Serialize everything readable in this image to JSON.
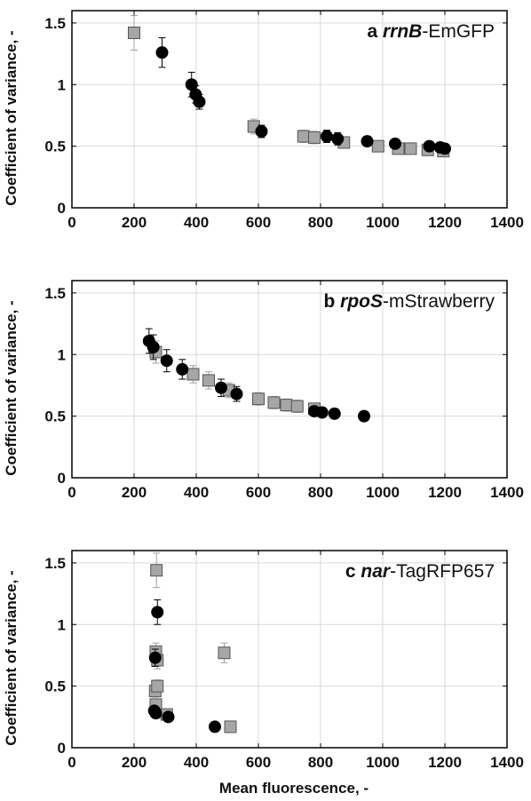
{
  "colors": {
    "black_series": "#000000",
    "gray_series": "#a6a6a6",
    "gray_edge": "#555555",
    "grid": "#d9d9d9",
    "errorbar_gray": "#a0a0a0"
  },
  "xlabel": "Mean fluorescence, -",
  "chart_data": [
    {
      "type": "scatter",
      "panel_letter": "a",
      "title_italic": "rrnB",
      "title_rest": "-EmGFP",
      "ylabel": "Coefficient of variance, -",
      "xlim": [
        0,
        1400
      ],
      "ylim": [
        0,
        1.6
      ],
      "xticks": [
        "0",
        "200",
        "400",
        "600",
        "800",
        "1000",
        "1200",
        "1400"
      ],
      "yticks": [
        "0",
        "0.5",
        "1",
        "1.5"
      ],
      "grid": true,
      "series": [
        {
          "marker": "circle",
          "color": "black",
          "points": [
            {
              "x": 290,
              "y": 1.26,
              "err": 0.12
            },
            {
              "x": 385,
              "y": 1.0,
              "err": 0.1
            },
            {
              "x": 398,
              "y": 0.92,
              "err": 0.07
            },
            {
              "x": 410,
              "y": 0.86,
              "err": 0.06
            },
            {
              "x": 610,
              "y": 0.62,
              "err": 0.05
            },
            {
              "x": 820,
              "y": 0.58,
              "err": 0.05
            },
            {
              "x": 855,
              "y": 0.56,
              "err": 0.05
            },
            {
              "x": 950,
              "y": 0.54,
              "err": 0.04
            },
            {
              "x": 1040,
              "y": 0.52,
              "err": 0.03
            },
            {
              "x": 1150,
              "y": 0.5,
              "err": 0.03
            },
            {
              "x": 1185,
              "y": 0.49,
              "err": 0.03
            },
            {
              "x": 1200,
              "y": 0.48,
              "err": 0.03
            }
          ]
        },
        {
          "marker": "square",
          "color": "gray",
          "points": [
            {
              "x": 200,
              "y": 1.42,
              "err": 0.14
            },
            {
              "x": 585,
              "y": 0.66,
              "err": 0.06
            },
            {
              "x": 745,
              "y": 0.58,
              "err": 0.05
            },
            {
              "x": 780,
              "y": 0.57,
              "err": 0.05
            },
            {
              "x": 875,
              "y": 0.53,
              "err": 0.04
            },
            {
              "x": 985,
              "y": 0.5,
              "err": 0.03
            },
            {
              "x": 1050,
              "y": 0.48,
              "err": 0.03
            },
            {
              "x": 1090,
              "y": 0.48,
              "err": 0.03
            },
            {
              "x": 1145,
              "y": 0.47,
              "err": 0.03
            },
            {
              "x": 1195,
              "y": 0.46,
              "err": 0.03
            }
          ]
        }
      ]
    },
    {
      "type": "scatter",
      "panel_letter": "b",
      "title_italic": "rpoS",
      "title_rest": "-mStrawberry",
      "ylabel": "Coefficient of variance, -",
      "xlim": [
        0,
        1400
      ],
      "ylim": [
        0,
        1.6
      ],
      "xticks": [
        "0",
        "200",
        "400",
        "600",
        "800",
        "1000",
        "1200",
        "1400"
      ],
      "yticks": [
        "0",
        "0.5",
        "1",
        "1.5"
      ],
      "grid": true,
      "series": [
        {
          "marker": "circle",
          "color": "black",
          "points": [
            {
              "x": 248,
              "y": 1.11,
              "err": 0.1
            },
            {
              "x": 262,
              "y": 1.06,
              "err": 0.1
            },
            {
              "x": 305,
              "y": 0.95,
              "err": 0.09
            },
            {
              "x": 355,
              "y": 0.88,
              "err": 0.08
            },
            {
              "x": 480,
              "y": 0.73,
              "err": 0.07
            },
            {
              "x": 530,
              "y": 0.68,
              "err": 0.06
            },
            {
              "x": 780,
              "y": 0.54,
              "err": 0.04
            },
            {
              "x": 805,
              "y": 0.53,
              "err": 0.04
            },
            {
              "x": 845,
              "y": 0.52,
              "err": 0.04
            },
            {
              "x": 940,
              "y": 0.5,
              "err": 0.03
            }
          ]
        },
        {
          "marker": "square",
          "color": "gray",
          "points": [
            {
              "x": 270,
              "y": 1.02,
              "err": 0.09
            },
            {
              "x": 390,
              "y": 0.84,
              "err": 0.07
            },
            {
              "x": 440,
              "y": 0.79,
              "err": 0.07
            },
            {
              "x": 505,
              "y": 0.71,
              "err": 0.06
            },
            {
              "x": 600,
              "y": 0.64,
              "err": 0.05
            },
            {
              "x": 650,
              "y": 0.61,
              "err": 0.05
            },
            {
              "x": 690,
              "y": 0.59,
              "err": 0.05
            },
            {
              "x": 725,
              "y": 0.58,
              "err": 0.05
            },
            {
              "x": 780,
              "y": 0.56,
              "err": 0.04
            }
          ]
        }
      ]
    },
    {
      "type": "scatter",
      "panel_letter": "c",
      "title_italic": "nar",
      "title_rest": "-TagRFP657",
      "ylabel": "Coefficient of variance, -",
      "xlim": [
        0,
        1400
      ],
      "ylim": [
        0,
        1.6
      ],
      "xticks": [
        "0",
        "200",
        "400",
        "600",
        "800",
        "1000",
        "1200",
        "1400"
      ],
      "yticks": [
        "0",
        "0.5",
        "1",
        "1.5"
      ],
      "grid": true,
      "series": [
        {
          "marker": "circle",
          "color": "black",
          "points": [
            {
              "x": 275,
              "y": 1.1,
              "err": 0.1
            },
            {
              "x": 268,
              "y": 0.73,
              "err": 0.07
            },
            {
              "x": 265,
              "y": 0.3,
              "err": 0.03
            },
            {
              "x": 270,
              "y": 0.28,
              "err": 0.03
            },
            {
              "x": 310,
              "y": 0.25,
              "err": 0.02
            },
            {
              "x": 460,
              "y": 0.17,
              "err": 0.02
            }
          ]
        },
        {
          "marker": "square",
          "color": "gray",
          "points": [
            {
              "x": 272,
              "y": 1.44,
              "err": 0.14
            },
            {
              "x": 270,
              "y": 0.78,
              "err": 0.07
            },
            {
              "x": 275,
              "y": 0.71,
              "err": 0.07
            },
            {
              "x": 268,
              "y": 0.46,
              "err": 0.05
            },
            {
              "x": 275,
              "y": 0.5,
              "err": 0.05
            },
            {
              "x": 270,
              "y": 0.35,
              "err": 0.04
            },
            {
              "x": 305,
              "y": 0.27,
              "err": 0.03
            },
            {
              "x": 490,
              "y": 0.77,
              "err": 0.08
            },
            {
              "x": 510,
              "y": 0.17,
              "err": 0.02
            }
          ]
        }
      ]
    }
  ]
}
